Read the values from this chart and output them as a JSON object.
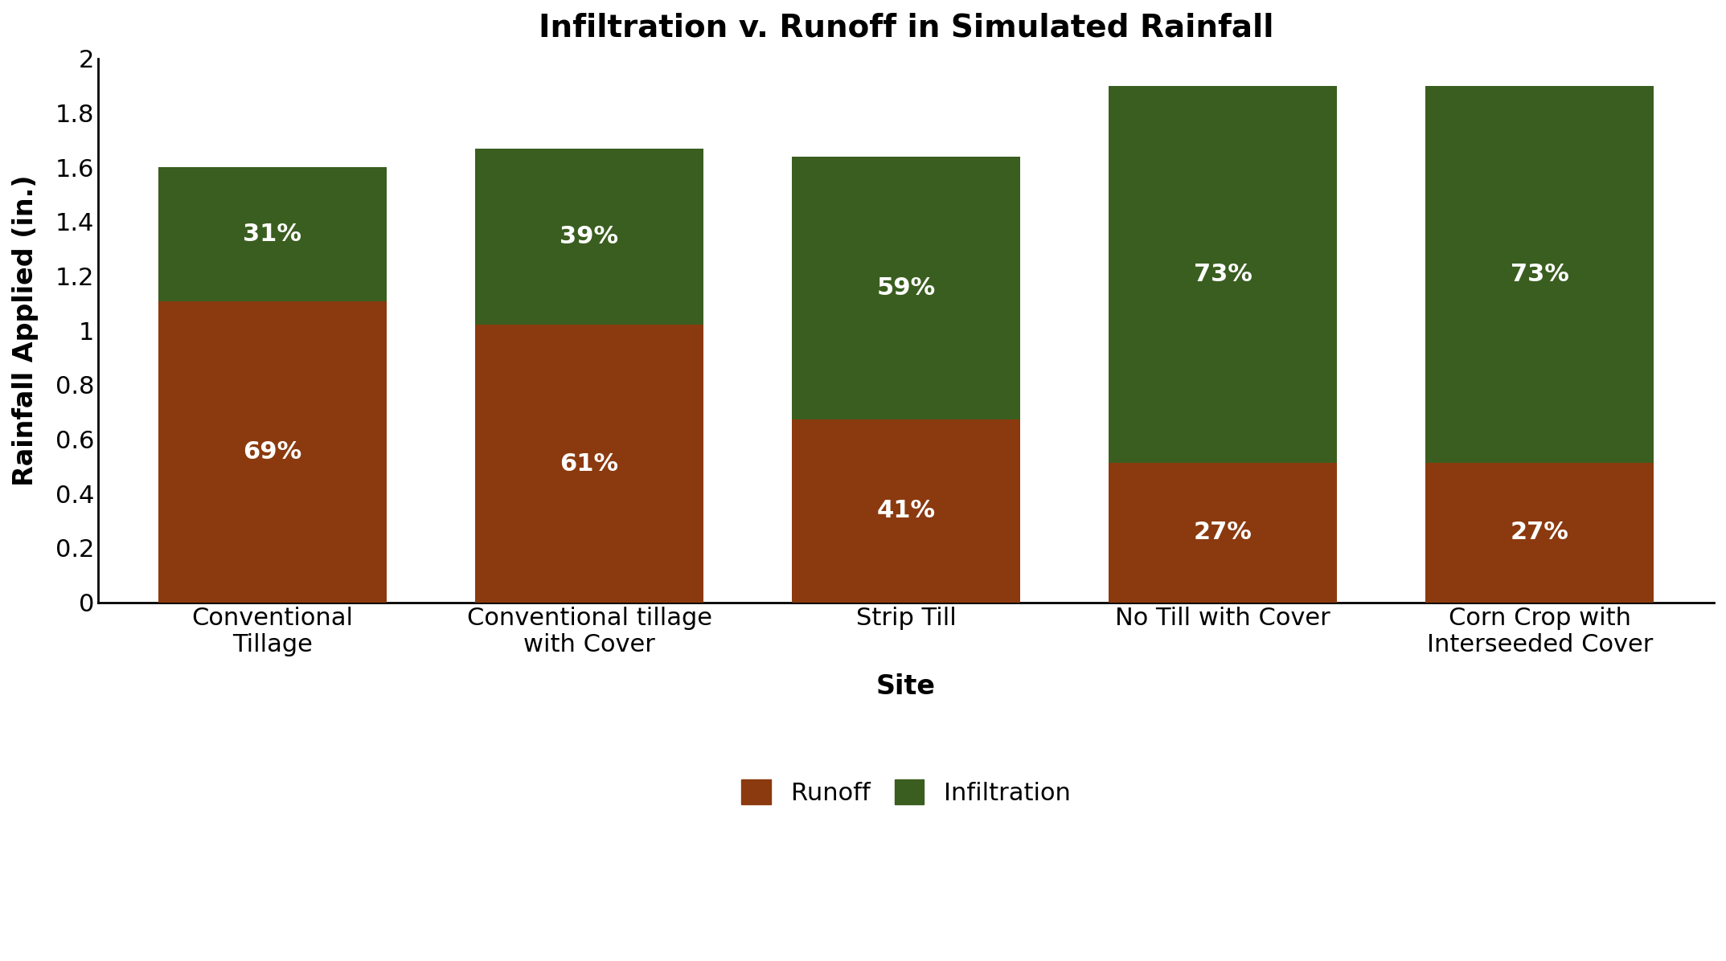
{
  "title": "Infiltration v. Runoff in Simulated Rainfall",
  "xlabel": "Site",
  "ylabel": "Rainfall Applied (in.)",
  "categories": [
    "Conventional\nTillage",
    "Conventional tillage\nwith Cover",
    "Strip Till",
    "No Till with Cover",
    "Corn Crop with\nInterseeded Cover"
  ],
  "runoff_values": [
    1.108,
    1.02,
    0.672,
    0.513,
    0.513
  ],
  "infiltration_values": [
    0.492,
    0.648,
    0.968,
    1.387,
    1.387
  ],
  "runoff_pct": [
    "69%",
    "61%",
    "41%",
    "27%",
    "27%"
  ],
  "infiltration_pct": [
    "31%",
    "39%",
    "59%",
    "73%",
    "73%"
  ],
  "runoff_color": "#8B3A0F",
  "infiltration_color": "#3A5E1F",
  "bar_width": 0.72,
  "ylim": [
    0,
    2.0
  ],
  "ytick_values": [
    0,
    0.2,
    0.4,
    0.6,
    0.8,
    1.0,
    1.2,
    1.4,
    1.6,
    1.8,
    2.0
  ],
  "ytick_labels": [
    "0",
    "0.2",
    "0.4",
    "0.6",
    "0.8",
    "1",
    "1.2",
    "1.4",
    "1.6",
    "1.8",
    "2"
  ],
  "legend_labels": [
    "Runoff",
    "Infiltration"
  ],
  "title_fontsize": 28,
  "axis_label_fontsize": 24,
  "tick_fontsize": 22,
  "pct_fontsize": 22,
  "legend_fontsize": 22,
  "background_color": "#ffffff"
}
